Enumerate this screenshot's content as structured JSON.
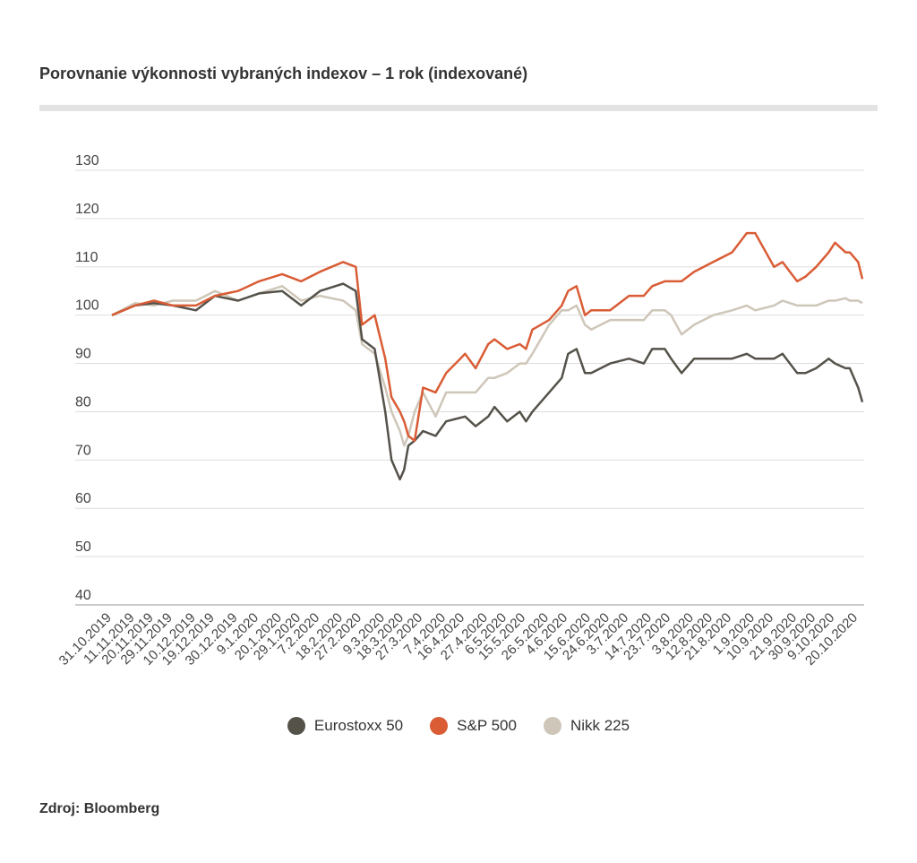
{
  "title": "Porovnanie výkonnosti vybraných indexov – 1 rok (indexované)",
  "source": "Zdroj: Bloomberg",
  "chart_data": {
    "type": "line",
    "title": "Porovnanie výkonnosti vybraných indexov – 1 rok (indexované)",
    "ylim": [
      40,
      130
    ],
    "yticks": [
      130,
      120,
      110,
      100,
      90,
      80,
      70,
      60,
      50,
      40
    ],
    "grid": true,
    "legend_position": "bottom",
    "x_ticks": [
      "31.10.2019",
      "11.11.2019",
      "20.11.2019",
      "29.11.2019",
      "10.12.2019",
      "19.12.2019",
      "30.12.2019",
      "9.1.2020",
      "20.1.2020",
      "29.1.2020",
      "7.2.2020",
      "18.2.2020",
      "27.2.2020",
      "9.3.2020",
      "18.3.2020",
      "27.3.2020",
      "7.4.2020",
      "16.4.2020",
      "27.4.2020",
      "6.5.2020",
      "15.5.2020",
      "26.5.2020",
      "4.6.2020",
      "15.6.2020",
      "24.6.2020",
      "3.7.2020",
      "14.7.2020",
      "23.7.2020",
      "3.8.2020",
      "12.8.2020",
      "21.8.2020",
      "1.9.2020",
      "10.9.2020",
      "21.9.2020",
      "30.9.2020",
      "9.10.2020",
      "20.10.2020"
    ],
    "series": [
      {
        "name": "Eurostoxx 50",
        "color": "#55524a",
        "points": [
          [
            "31.10.2019",
            100
          ],
          [
            "11.11.2019",
            102
          ],
          [
            "20.11.2019",
            102.5
          ],
          [
            "29.11.2019",
            102
          ],
          [
            "10.12.2019",
            101
          ],
          [
            "19.12.2019",
            104
          ],
          [
            "30.12.2019",
            103
          ],
          [
            "9.1.2020",
            104.5
          ],
          [
            "20.1.2020",
            105
          ],
          [
            "29.1.2020",
            102
          ],
          [
            "7.2.2020",
            105
          ],
          [
            "18.2.2020",
            106.5
          ],
          [
            "24.2.2020",
            105
          ],
          [
            "27.2.2020",
            95
          ],
          [
            "4.3.2020",
            93
          ],
          [
            "9.3.2020",
            80
          ],
          [
            "12.3.2020",
            70
          ],
          [
            "16.3.2020",
            66
          ],
          [
            "18.3.2020",
            68
          ],
          [
            "20.3.2020",
            73
          ],
          [
            "23.3.2020",
            74
          ],
          [
            "27.3.2020",
            76
          ],
          [
            "2.4.2020",
            75
          ],
          [
            "7.4.2020",
            78
          ],
          [
            "16.4.2020",
            79
          ],
          [
            "21.4.2020",
            77
          ],
          [
            "27.4.2020",
            79
          ],
          [
            "30.4.2020",
            81
          ],
          [
            "6.5.2020",
            78
          ],
          [
            "12.5.2020",
            80
          ],
          [
            "15.5.2020",
            78
          ],
          [
            "18.5.2020",
            80
          ],
          [
            "26.5.2020",
            84
          ],
          [
            "1.6.2020",
            87
          ],
          [
            "4.6.2020",
            92
          ],
          [
            "8.6.2020",
            93
          ],
          [
            "12.6.2020",
            88
          ],
          [
            "15.6.2020",
            88
          ],
          [
            "24.6.2020",
            90
          ],
          [
            "3.7.2020",
            91
          ],
          [
            "10.7.2020",
            90
          ],
          [
            "14.7.2020",
            93
          ],
          [
            "20.7.2020",
            93
          ],
          [
            "23.7.2020",
            91
          ],
          [
            "28.7.2020",
            88
          ],
          [
            "3.8.2020",
            91
          ],
          [
            "12.8.2020",
            91
          ],
          [
            "21.8.2020",
            91
          ],
          [
            "28.8.2020",
            92
          ],
          [
            "1.9.2020",
            91
          ],
          [
            "10.9.2020",
            91
          ],
          [
            "14.9.2020",
            92
          ],
          [
            "21.9.2020",
            88
          ],
          [
            "25.9.2020",
            88
          ],
          [
            "30.9.2020",
            89
          ],
          [
            "6.10.2020",
            91
          ],
          [
            "9.10.2020",
            90
          ],
          [
            "14.10.2020",
            89
          ],
          [
            "16.10.2020",
            89
          ],
          [
            "20.10.2020",
            85
          ],
          [
            "22.10.2020",
            82
          ]
        ]
      },
      {
        "name": "S&P 500",
        "color": "#d95c35",
        "points": [
          [
            "31.10.2019",
            100
          ],
          [
            "11.11.2019",
            102
          ],
          [
            "20.11.2019",
            103
          ],
          [
            "29.11.2019",
            102
          ],
          [
            "10.12.2019",
            102
          ],
          [
            "19.12.2019",
            104
          ],
          [
            "30.12.2019",
            105
          ],
          [
            "9.1.2020",
            107
          ],
          [
            "20.1.2020",
            108.5
          ],
          [
            "29.1.2020",
            107
          ],
          [
            "7.2.2020",
            109
          ],
          [
            "18.2.2020",
            111
          ],
          [
            "24.2.2020",
            110
          ],
          [
            "27.2.2020",
            98
          ],
          [
            "4.3.2020",
            100
          ],
          [
            "9.3.2020",
            91
          ],
          [
            "12.3.2020",
            83
          ],
          [
            "16.3.2020",
            80
          ],
          [
            "18.3.2020",
            78
          ],
          [
            "20.3.2020",
            75
          ],
          [
            "23.3.2020",
            74
          ],
          [
            "27.3.2020",
            85
          ],
          [
            "2.4.2020",
            84
          ],
          [
            "7.4.2020",
            88
          ],
          [
            "16.4.2020",
            92
          ],
          [
            "21.4.2020",
            89
          ],
          [
            "27.4.2020",
            94
          ],
          [
            "30.4.2020",
            95
          ],
          [
            "6.5.2020",
            93
          ],
          [
            "12.5.2020",
            94
          ],
          [
            "15.5.2020",
            93
          ],
          [
            "18.5.2020",
            97
          ],
          [
            "26.5.2020",
            99
          ],
          [
            "1.6.2020",
            102
          ],
          [
            "4.6.2020",
            105
          ],
          [
            "8.6.2020",
            106
          ],
          [
            "12.6.2020",
            100
          ],
          [
            "15.6.2020",
            101
          ],
          [
            "24.6.2020",
            101
          ],
          [
            "3.7.2020",
            104
          ],
          [
            "10.7.2020",
            104
          ],
          [
            "14.7.2020",
            106
          ],
          [
            "20.7.2020",
            107
          ],
          [
            "23.7.2020",
            107
          ],
          [
            "28.7.2020",
            107
          ],
          [
            "3.8.2020",
            109
          ],
          [
            "12.8.2020",
            111
          ],
          [
            "21.8.2020",
            113
          ],
          [
            "28.8.2020",
            117
          ],
          [
            "1.9.2020",
            117
          ],
          [
            "10.9.2020",
            110
          ],
          [
            "14.9.2020",
            111
          ],
          [
            "21.9.2020",
            107
          ],
          [
            "25.9.2020",
            108
          ],
          [
            "30.9.2020",
            110
          ],
          [
            "6.10.2020",
            113
          ],
          [
            "9.10.2020",
            115
          ],
          [
            "14.10.2020",
            113
          ],
          [
            "16.10.2020",
            113
          ],
          [
            "20.10.2020",
            111
          ],
          [
            "22.10.2020",
            107.5
          ]
        ]
      },
      {
        "name": "Nikk 225",
        "color": "#cec6b8",
        "points": [
          [
            "31.10.2019",
            100
          ],
          [
            "11.11.2019",
            102.5
          ],
          [
            "20.11.2019",
            102
          ],
          [
            "29.11.2019",
            103
          ],
          [
            "10.12.2019",
            103
          ],
          [
            "19.12.2019",
            105
          ],
          [
            "30.12.2019",
            103
          ],
          [
            "9.1.2020",
            104.5
          ],
          [
            "20.1.2020",
            106
          ],
          [
            "29.1.2020",
            103
          ],
          [
            "7.2.2020",
            104
          ],
          [
            "18.2.2020",
            103
          ],
          [
            "24.2.2020",
            101
          ],
          [
            "27.2.2020",
            94
          ],
          [
            "4.3.2020",
            92
          ],
          [
            "9.3.2020",
            85
          ],
          [
            "12.3.2020",
            80
          ],
          [
            "16.3.2020",
            76
          ],
          [
            "18.3.2020",
            73
          ],
          [
            "20.3.2020",
            75
          ],
          [
            "23.3.2020",
            80
          ],
          [
            "27.3.2020",
            84
          ],
          [
            "2.4.2020",
            79
          ],
          [
            "7.4.2020",
            84
          ],
          [
            "16.4.2020",
            84
          ],
          [
            "21.4.2020",
            84
          ],
          [
            "27.4.2020",
            87
          ],
          [
            "30.4.2020",
            87
          ],
          [
            "6.5.2020",
            88
          ],
          [
            "12.5.2020",
            90
          ],
          [
            "15.5.2020",
            90
          ],
          [
            "18.5.2020",
            92
          ],
          [
            "26.5.2020",
            98
          ],
          [
            "1.6.2020",
            101
          ],
          [
            "4.6.2020",
            101
          ],
          [
            "8.6.2020",
            102
          ],
          [
            "12.6.2020",
            98
          ],
          [
            "15.6.2020",
            97
          ],
          [
            "24.6.2020",
            99
          ],
          [
            "3.7.2020",
            99
          ],
          [
            "10.7.2020",
            99
          ],
          [
            "14.7.2020",
            101
          ],
          [
            "20.7.2020",
            101
          ],
          [
            "23.7.2020",
            100
          ],
          [
            "28.7.2020",
            96
          ],
          [
            "3.8.2020",
            98
          ],
          [
            "12.8.2020",
            100
          ],
          [
            "21.8.2020",
            101
          ],
          [
            "28.8.2020",
            102
          ],
          [
            "1.9.2020",
            101
          ],
          [
            "10.9.2020",
            102
          ],
          [
            "14.9.2020",
            103
          ],
          [
            "21.9.2020",
            102
          ],
          [
            "25.9.2020",
            102
          ],
          [
            "30.9.2020",
            102
          ],
          [
            "6.10.2020",
            103
          ],
          [
            "9.10.2020",
            103
          ],
          [
            "14.10.2020",
            103.5
          ],
          [
            "16.10.2020",
            103
          ],
          [
            "20.10.2020",
            103
          ],
          [
            "22.10.2020",
            102.5
          ]
        ]
      }
    ]
  }
}
